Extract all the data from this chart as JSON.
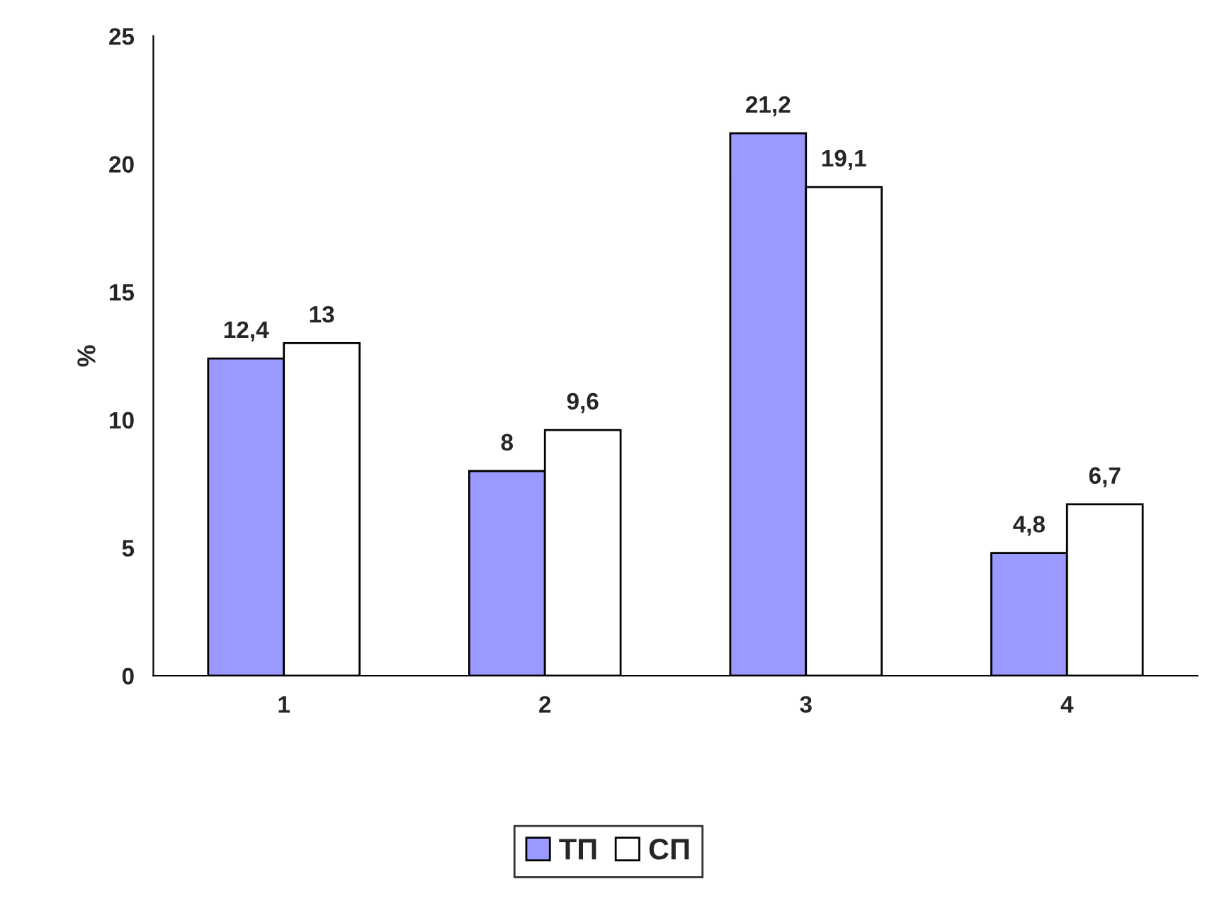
{
  "chart_data": {
    "type": "bar",
    "ylabel": "%",
    "categories": [
      "1",
      "2",
      "3",
      "4"
    ],
    "series": [
      {
        "name": "ТП",
        "color": "#9999ff",
        "values": [
          12.4,
          8,
          21.2,
          4.8
        ],
        "value_labels": [
          "12,4",
          "8",
          "21,2",
          "4,8"
        ]
      },
      {
        "name": "СП",
        "color": "#ffffff",
        "values": [
          13,
          9.6,
          19.1,
          6.7
        ],
        "value_labels": [
          "13",
          "9,6",
          "19,1",
          "6,7"
        ]
      }
    ],
    "ylim": [
      0,
      25
    ],
    "yticks": [
      0,
      5,
      10,
      15,
      20,
      25
    ],
    "grid": false,
    "legend": "bottom"
  }
}
